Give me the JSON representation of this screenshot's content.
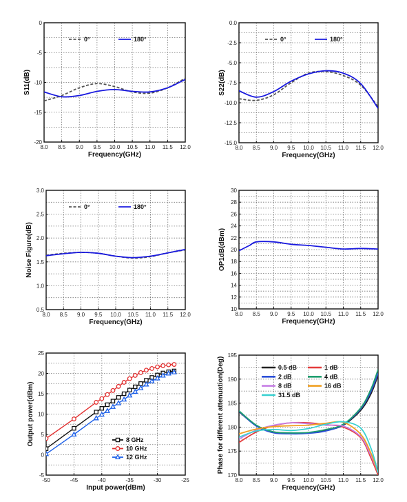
{
  "chart_data": [
    {
      "id": "s11",
      "type": "line",
      "xlabel": "Frequency(GHz)",
      "ylabel": "S11(dB)",
      "xlim": [
        8.0,
        12.0
      ],
      "ylim": [
        -20,
        0
      ],
      "xticks": [
        "8.0",
        "8.5",
        "9.0",
        "9.5",
        "10.0",
        "10.5",
        "11.0",
        "11.5",
        "12.0"
      ],
      "yticks": [
        "-20",
        "-15",
        "-10",
        "-5",
        "0"
      ],
      "grid": true,
      "legend": "top",
      "series": [
        {
          "name": "0°",
          "color": "#555555",
          "dashed": true,
          "x": [
            8.0,
            8.5,
            9.0,
            9.5,
            10.0,
            10.5,
            11.0,
            11.5,
            12.0
          ],
          "y": [
            -13.1,
            -12.2,
            -10.9,
            -10.2,
            -10.7,
            -11.6,
            -11.8,
            -10.9,
            -9.3
          ]
        },
        {
          "name": "180°",
          "color": "#1a1adf",
          "dashed": false,
          "x": [
            8.0,
            8.5,
            9.0,
            9.5,
            10.0,
            10.5,
            11.0,
            11.5,
            12.0
          ],
          "y": [
            -11.6,
            -12.4,
            -12.2,
            -11.5,
            -11.2,
            -11.5,
            -11.6,
            -10.9,
            -9.5
          ]
        }
      ]
    },
    {
      "id": "s22",
      "type": "line",
      "xlabel": "Frequency(GHz)",
      "ylabel": "S22(dB)",
      "xlim": [
        8.0,
        12.0
      ],
      "ylim": [
        -15,
        0
      ],
      "xticks": [
        "8.0",
        "8.5",
        "9.0",
        "9.5",
        "10.0",
        "10.5",
        "11.0",
        "11.5",
        "12.0"
      ],
      "yticks": [
        "-15.0",
        "-12.5",
        "-10.0",
        "-7.5",
        "-5.0",
        "-2.5",
        "0.0"
      ],
      "grid": true,
      "legend": "top",
      "series": [
        {
          "name": "0°",
          "color": "#555555",
          "dashed": true,
          "x": [
            8.0,
            8.5,
            9.0,
            9.5,
            10.0,
            10.5,
            11.0,
            11.5,
            12.0
          ],
          "y": [
            -9.5,
            -9.7,
            -9.0,
            -7.5,
            -6.3,
            -6.1,
            -6.6,
            -7.8,
            -10.5
          ]
        },
        {
          "name": "180°",
          "color": "#1a1adf",
          "dashed": false,
          "x": [
            8.0,
            8.5,
            9.0,
            9.5,
            10.0,
            10.5,
            11.0,
            11.5,
            12.0
          ],
          "y": [
            -8.5,
            -9.3,
            -8.6,
            -7.3,
            -6.4,
            -6.0,
            -6.3,
            -7.6,
            -10.7
          ]
        }
      ]
    },
    {
      "id": "nf",
      "type": "line",
      "xlabel": "Frequency(GHz)",
      "ylabel": "Noise Figure(dB)",
      "xlim": [
        8.0,
        12.0
      ],
      "ylim": [
        0.5,
        3.0
      ],
      "xticks": [
        "8.0",
        "8.5",
        "9.0",
        "9.5",
        "10.0",
        "10.5",
        "11.0",
        "11.5",
        "12.0"
      ],
      "yticks": [
        "0.5",
        "1.0",
        "1.5",
        "2.0",
        "2.5",
        "3.0"
      ],
      "grid": true,
      "legend": "top",
      "series": [
        {
          "name": "0°",
          "color": "#555555",
          "dashed": true,
          "x": [
            8.0,
            8.5,
            9.0,
            9.5,
            10.0,
            10.5,
            11.0,
            11.5,
            12.0
          ],
          "y": [
            1.64,
            1.68,
            1.7,
            1.68,
            1.62,
            1.58,
            1.61,
            1.69,
            1.75
          ]
        },
        {
          "name": "180°",
          "color": "#1a1adf",
          "dashed": false,
          "x": [
            8.0,
            8.5,
            9.0,
            9.5,
            10.0,
            10.5,
            11.0,
            11.5,
            12.0
          ],
          "y": [
            1.63,
            1.67,
            1.7,
            1.68,
            1.62,
            1.59,
            1.62,
            1.69,
            1.76
          ]
        }
      ]
    },
    {
      "id": "op1db",
      "type": "line",
      "xlabel": "Frequency(GHz)",
      "ylabel": "OP1dB(dBm)",
      "xlim": [
        8.0,
        12.0
      ],
      "ylim": [
        10,
        30
      ],
      "xticks": [
        "8.0",
        "8.5",
        "9.0",
        "9.5",
        "10.0",
        "10.5",
        "11.0",
        "11.5",
        "12.0"
      ],
      "yticks": [
        "10",
        "12",
        "14",
        "16",
        "18",
        "20",
        "22",
        "24",
        "26",
        "28",
        "30"
      ],
      "grid": true,
      "series": [
        {
          "color": "#1a1adf",
          "dashed": false,
          "x": [
            8.0,
            8.3,
            8.5,
            9.0,
            9.5,
            10.0,
            10.5,
            11.0,
            11.5,
            12.0
          ],
          "y": [
            19.8,
            20.7,
            21.3,
            21.3,
            20.9,
            20.7,
            20.4,
            20.1,
            20.2,
            20.1
          ]
        }
      ]
    },
    {
      "id": "pout",
      "type": "line",
      "xlabel": "Input power(dBm)",
      "ylabel": "Output power(dBm)",
      "xlim": [
        -50,
        -25
      ],
      "ylim": [
        -5,
        25
      ],
      "xticks": [
        "-50",
        "-45",
        "-40",
        "-35",
        "-30",
        "-25"
      ],
      "yticks": [
        "-5",
        "0",
        "5",
        "10",
        "15",
        "20",
        "25"
      ],
      "grid": true,
      "legend": "bottom-center",
      "series": [
        {
          "name": "8 GHz",
          "color": "#111111",
          "marker": "square",
          "x": [
            -50,
            -45,
            -41,
            -40,
            -39,
            -38,
            -37,
            -36,
            -35,
            -34,
            -33,
            -32,
            -31,
            -30,
            -29,
            -28,
            -27
          ],
          "y": [
            1.5,
            6.5,
            10.5,
            11.4,
            12.3,
            13.2,
            14.1,
            15.0,
            15.9,
            16.7,
            17.5,
            18.3,
            19.0,
            19.6,
            20.1,
            20.4,
            20.6
          ]
        },
        {
          "name": "10 GHz",
          "color": "#e23030",
          "marker": "circle",
          "x": [
            -50,
            -45,
            -41,
            -40,
            -39,
            -38,
            -37,
            -36,
            -35,
            -34,
            -33,
            -32,
            -31,
            -30,
            -29,
            -28,
            -27
          ],
          "y": [
            4.0,
            8.8,
            12.9,
            13.8,
            14.8,
            15.8,
            16.8,
            17.8,
            18.7,
            19.5,
            20.2,
            20.8,
            21.2,
            21.6,
            21.9,
            22.1,
            22.2
          ]
        },
        {
          "name": "12 GHz",
          "color": "#1a5ee8",
          "marker": "triangle",
          "x": [
            -50,
            -45,
            -41,
            -40,
            -39,
            -38,
            -37,
            -36,
            -35,
            -34,
            -33,
            -32,
            -31,
            -30,
            -29,
            -28,
            -27
          ],
          "y": [
            0.2,
            5.0,
            9.0,
            9.9,
            10.8,
            11.8,
            12.7,
            13.6,
            14.6,
            15.5,
            16.4,
            17.3,
            18.1,
            18.8,
            19.5,
            20.0,
            20.3
          ]
        }
      ]
    },
    {
      "id": "phase",
      "type": "line",
      "xlabel": "Frequency(GHz)",
      "ylabel": "Phase for different attenuation(Deg)",
      "xlim": [
        8.0,
        12.0
      ],
      "ylim": [
        170,
        195
      ],
      "xticks": [
        "8.0",
        "8.5",
        "9.0",
        "9.5",
        "10.0",
        "10.5",
        "11.0",
        "11.5",
        "12.0"
      ],
      "yticks": [
        "170",
        "175",
        "180",
        "185",
        "190",
        "195"
      ],
      "grid": true,
      "legend": "top",
      "series": [
        {
          "name": "0.5 dB",
          "color": "#222222",
          "x": [
            8.0,
            8.5,
            9.0,
            9.5,
            10.0,
            10.5,
            11.0,
            11.5,
            11.8,
            12.0
          ],
          "y": [
            183.2,
            180.3,
            179.0,
            178.8,
            178.8,
            179.3,
            180.4,
            183.5,
            187.0,
            190.8
          ]
        },
        {
          "name": "1 dB",
          "color": "#e43c3c",
          "x": [
            8.0,
            8.5,
            9.0,
            9.5,
            10.0,
            10.5,
            11.0,
            11.5,
            11.8,
            12.0
          ],
          "y": [
            176.8,
            179.0,
            180.3,
            180.9,
            180.9,
            180.5,
            180.0,
            177.8,
            173.5,
            170.0
          ]
        },
        {
          "name": "2 dB",
          "color": "#2b4fd8",
          "x": [
            8.0,
            8.5,
            9.0,
            9.5,
            10.0,
            10.5,
            11.0,
            11.5,
            11.8,
            12.0
          ],
          "y": [
            183.3,
            180.2,
            178.8,
            178.6,
            178.7,
            179.2,
            180.5,
            183.8,
            187.5,
            191.2
          ]
        },
        {
          "name": "4 dB",
          "color": "#1f9e6f",
          "x": [
            8.0,
            8.5,
            9.0,
            9.5,
            10.0,
            10.5,
            11.0,
            11.5,
            11.8,
            12.0
          ],
          "y": [
            183.4,
            180.4,
            179.0,
            178.8,
            178.9,
            179.5,
            180.6,
            184.0,
            188.0,
            192.0
          ]
        },
        {
          "name": "8 dB",
          "color": "#c77fe6",
          "x": [
            8.0,
            8.5,
            9.0,
            9.5,
            10.0,
            10.5,
            11.0,
            11.5,
            11.8,
            12.0
          ],
          "y": [
            177.5,
            179.4,
            180.4,
            180.9,
            180.7,
            180.4,
            180.2,
            178.0,
            174.0,
            170.5
          ]
        },
        {
          "name": "16 dB",
          "color": "#f0a022",
          "x": [
            8.0,
            8.5,
            9.0,
            9.5,
            10.0,
            10.5,
            11.0,
            11.5,
            11.8,
            12.0
          ],
          "y": [
            178.6,
            179.6,
            180.1,
            180.3,
            180.4,
            180.8,
            181.0,
            178.5,
            174.5,
            170.5
          ]
        },
        {
          "name": "31.5 dB",
          "color": "#3ad1d1",
          "x": [
            8.0,
            8.5,
            9.0,
            9.5,
            10.0,
            10.5,
            11.0,
            11.5,
            11.8,
            12.0
          ],
          "y": [
            177.9,
            179.2,
            179.5,
            179.3,
            179.7,
            180.6,
            181.1,
            179.8,
            175.5,
            170.5
          ]
        }
      ]
    }
  ]
}
